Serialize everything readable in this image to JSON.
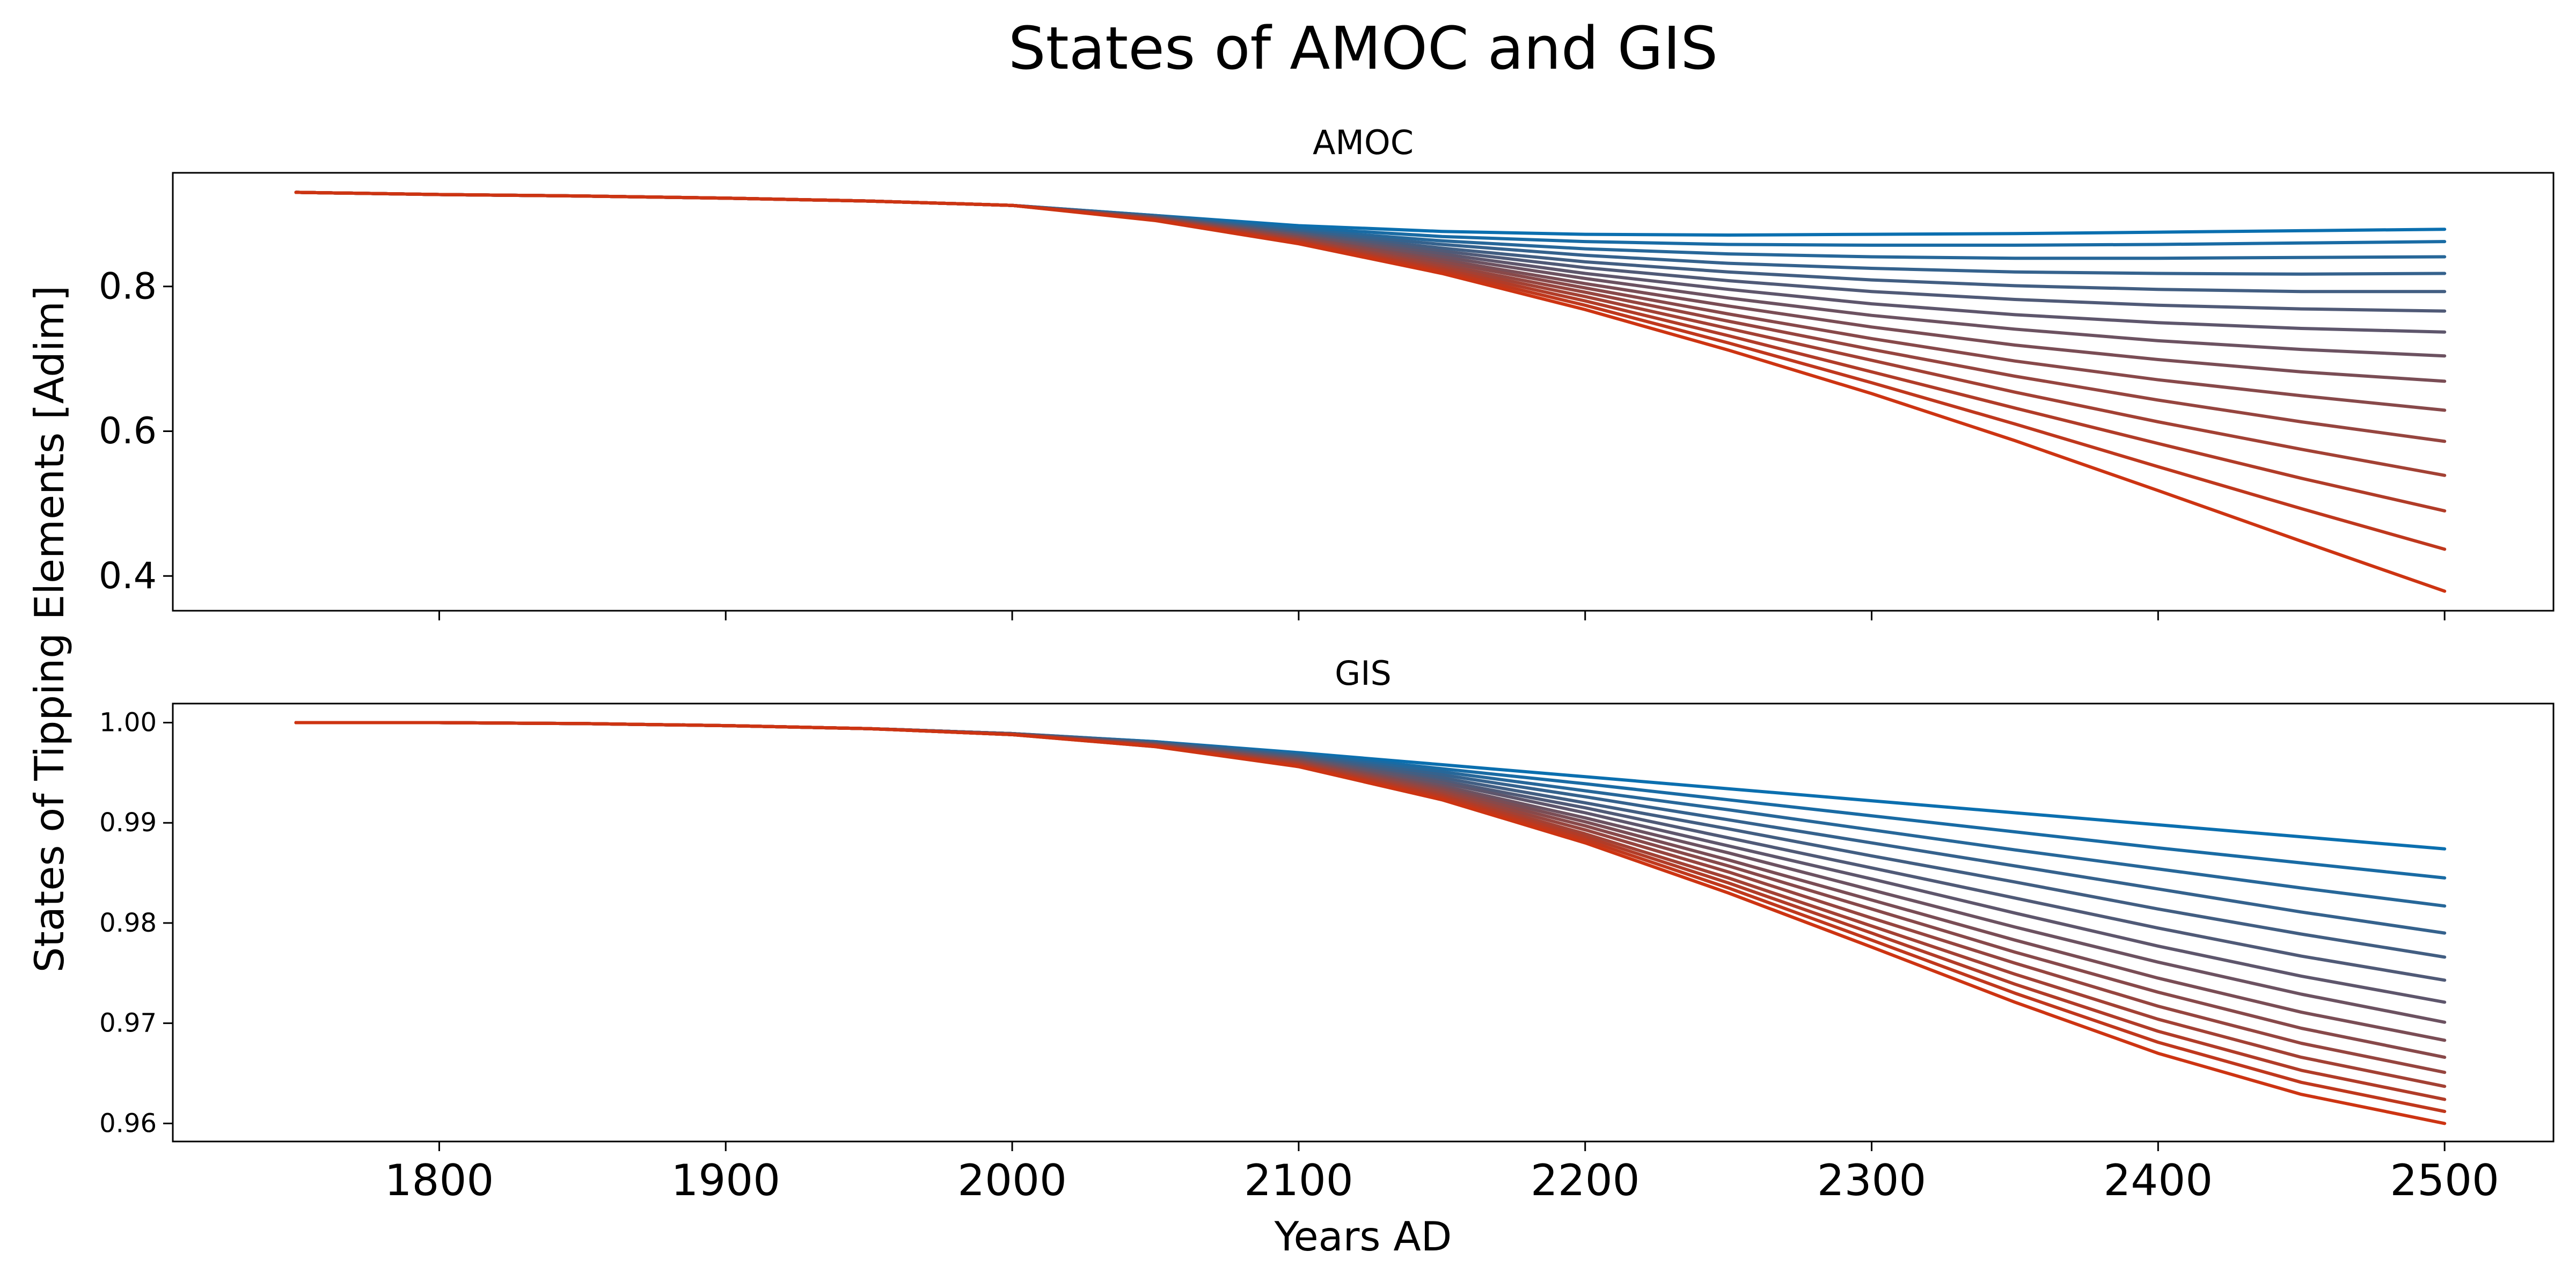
{
  "figure": {
    "title": "States of AMOC and GIS",
    "xlabel": "Years AD",
    "ylabel": "States of Tipping Elements [Adim]"
  },
  "colors": {
    "start": "#0b6faf",
    "end": "#cd3412"
  },
  "chart_data": [
    {
      "type": "line",
      "title": "AMOC",
      "xlabel": "",
      "ylabel": "",
      "xlim": [
        1707,
        2538
      ],
      "ylim": [
        0.352,
        0.957
      ],
      "xticks": [
        1800,
        1900,
        2000,
        2100,
        2200,
        2300,
        2400,
        2500
      ],
      "show_xticklabels": false,
      "yticks": [
        0.4,
        0.6,
        0.8
      ],
      "ytick_labels": [
        "0.4",
        "0.6",
        "0.8"
      ],
      "grid": false,
      "legend": "none",
      "x": [
        1750,
        1800,
        1850,
        1900,
        1950,
        2000,
        2050,
        2100,
        2150,
        2200,
        2250,
        2300,
        2350,
        2400,
        2450,
        2500
      ],
      "series": [
        {
          "values": [
            0.93,
            0.927,
            0.925,
            0.922,
            0.918,
            0.912,
            0.898,
            0.884,
            0.876,
            0.872,
            0.871,
            0.872,
            0.873,
            0.875,
            0.877,
            0.879
          ]
        },
        {
          "values": [
            0.93,
            0.927,
            0.925,
            0.922,
            0.918,
            0.912,
            0.898,
            0.881,
            0.869,
            0.862,
            0.858,
            0.857,
            0.857,
            0.858,
            0.86,
            0.862
          ]
        },
        {
          "values": [
            0.93,
            0.927,
            0.925,
            0.922,
            0.918,
            0.912,
            0.897,
            0.878,
            0.863,
            0.852,
            0.845,
            0.841,
            0.839,
            0.839,
            0.84,
            0.841
          ]
        },
        {
          "values": [
            0.93,
            0.927,
            0.925,
            0.922,
            0.918,
            0.912,
            0.897,
            0.876,
            0.858,
            0.843,
            0.832,
            0.825,
            0.82,
            0.818,
            0.817,
            0.818
          ]
        },
        {
          "values": [
            0.93,
            0.927,
            0.925,
            0.922,
            0.918,
            0.912,
            0.896,
            0.874,
            0.853,
            0.834,
            0.82,
            0.809,
            0.801,
            0.796,
            0.793,
            0.793
          ]
        },
        {
          "values": [
            0.93,
            0.927,
            0.925,
            0.922,
            0.918,
            0.912,
            0.896,
            0.873,
            0.849,
            0.826,
            0.808,
            0.793,
            0.782,
            0.774,
            0.769,
            0.766
          ]
        },
        {
          "values": [
            0.93,
            0.927,
            0.925,
            0.922,
            0.918,
            0.912,
            0.895,
            0.871,
            0.845,
            0.818,
            0.796,
            0.776,
            0.761,
            0.75,
            0.742,
            0.737
          ]
        },
        {
          "values": [
            0.93,
            0.927,
            0.925,
            0.922,
            0.918,
            0.912,
            0.895,
            0.87,
            0.841,
            0.811,
            0.784,
            0.76,
            0.741,
            0.725,
            0.713,
            0.704
          ]
        },
        {
          "values": [
            0.93,
            0.927,
            0.925,
            0.922,
            0.918,
            0.912,
            0.894,
            0.868,
            0.837,
            0.804,
            0.773,
            0.744,
            0.719,
            0.699,
            0.682,
            0.669
          ]
        },
        {
          "values": [
            0.93,
            0.927,
            0.925,
            0.922,
            0.918,
            0.912,
            0.894,
            0.867,
            0.834,
            0.798,
            0.762,
            0.728,
            0.697,
            0.671,
            0.649,
            0.629
          ]
        },
        {
          "values": [
            0.93,
            0.927,
            0.925,
            0.922,
            0.918,
            0.912,
            0.893,
            0.865,
            0.83,
            0.792,
            0.752,
            0.713,
            0.676,
            0.643,
            0.613,
            0.586
          ]
        },
        {
          "values": [
            0.93,
            0.927,
            0.925,
            0.922,
            0.918,
            0.912,
            0.893,
            0.864,
            0.827,
            0.786,
            0.742,
            0.698,
            0.654,
            0.613,
            0.575,
            0.539
          ]
        },
        {
          "values": [
            0.93,
            0.927,
            0.925,
            0.922,
            0.918,
            0.912,
            0.892,
            0.862,
            0.824,
            0.78,
            0.732,
            0.682,
            0.632,
            0.583,
            0.535,
            0.49
          ]
        },
        {
          "values": [
            0.93,
            0.927,
            0.925,
            0.922,
            0.918,
            0.912,
            0.892,
            0.861,
            0.821,
            0.774,
            0.722,
            0.667,
            0.61,
            0.551,
            0.493,
            0.437
          ]
        },
        {
          "values": [
            0.93,
            0.927,
            0.925,
            0.922,
            0.918,
            0.912,
            0.891,
            0.859,
            0.818,
            0.768,
            0.712,
            0.652,
            0.587,
            0.518,
            0.448,
            0.379
          ]
        }
      ]
    },
    {
      "type": "line",
      "title": "GIS",
      "xlabel": "",
      "ylabel": "",
      "xlim": [
        1707,
        2538
      ],
      "ylim": [
        0.9582,
        1.0019
      ],
      "xticks": [
        1800,
        1900,
        2000,
        2100,
        2200,
        2300,
        2400,
        2500
      ],
      "xtick_labels": [
        "1800",
        "1900",
        "2000",
        "2100",
        "2200",
        "2300",
        "2400",
        "2500"
      ],
      "show_xticklabels": true,
      "yticks": [
        0.96,
        0.97,
        0.98,
        0.99,
        1.0
      ],
      "ytick_labels": [
        "0.96",
        "0.97",
        "0.98",
        "0.99",
        "1.00"
      ],
      "grid": false,
      "legend": "none",
      "x": [
        1750,
        1800,
        1850,
        1900,
        1950,
        2000,
        2050,
        2100,
        2150,
        2200,
        2250,
        2300,
        2350,
        2400,
        2450,
        2500
      ],
      "series": [
        {
          "values": [
            1.0,
            1.0,
            0.9999,
            0.9997,
            0.9994,
            0.9989,
            0.9981,
            0.997,
            0.9958,
            0.9946,
            0.9934,
            0.9922,
            0.991,
            0.9898,
            0.9886,
            0.9874
          ]
        },
        {
          "values": [
            1.0,
            1.0,
            0.9999,
            0.9997,
            0.9994,
            0.9989,
            0.9981,
            0.9969,
            0.9954,
            0.9939,
            0.9923,
            0.9907,
            0.9891,
            0.9875,
            0.986,
            0.9845
          ]
        },
        {
          "values": [
            1.0,
            1.0,
            0.9999,
            0.9997,
            0.9994,
            0.9989,
            0.998,
            0.9968,
            0.9951,
            0.9932,
            0.9913,
            0.9893,
            0.9873,
            0.9854,
            0.9835,
            0.9817
          ]
        },
        {
          "values": [
            1.0,
            1.0,
            0.9999,
            0.9997,
            0.9994,
            0.9989,
            0.998,
            0.9967,
            0.9948,
            0.9926,
            0.9903,
            0.988,
            0.9857,
            0.9834,
            0.9811,
            0.979
          ]
        },
        {
          "values": [
            1.0,
            1.0,
            0.9999,
            0.9997,
            0.9994,
            0.9989,
            0.998,
            0.9966,
            0.9945,
            0.992,
            0.9894,
            0.9867,
            0.9841,
            0.9814,
            0.9789,
            0.9766
          ]
        },
        {
          "values": [
            1.0,
            1.0,
            0.9999,
            0.9997,
            0.9994,
            0.9989,
            0.9979,
            0.9965,
            0.9942,
            0.9915,
            0.9885,
            0.9855,
            0.9825,
            0.9795,
            0.9767,
            0.9743
          ]
        },
        {
          "values": [
            1.0,
            1.0,
            0.9999,
            0.9997,
            0.9994,
            0.9989,
            0.9979,
            0.9964,
            0.994,
            0.991,
            0.9877,
            0.9844,
            0.981,
            0.9777,
            0.9747,
            0.9721
          ]
        },
        {
          "values": [
            1.0,
            1.0,
            0.9999,
            0.9997,
            0.9994,
            0.9989,
            0.9978,
            0.9963,
            0.9937,
            0.9905,
            0.987,
            0.9833,
            0.9796,
            0.9761,
            0.9729,
            0.9701
          ]
        },
        {
          "values": [
            1.0,
            1.0,
            0.9999,
            0.9997,
            0.9994,
            0.9988,
            0.9978,
            0.9962,
            0.9935,
            0.9901,
            0.9863,
            0.9823,
            0.9783,
            0.9745,
            0.9711,
            0.9683
          ]
        },
        {
          "values": [
            1.0,
            1.0,
            0.9999,
            0.9997,
            0.9994,
            0.9988,
            0.9978,
            0.9961,
            0.9933,
            0.9897,
            0.9857,
            0.9814,
            0.9771,
            0.9731,
            0.9695,
            0.9666
          ]
        },
        {
          "values": [
            1.0,
            1.0,
            0.9999,
            0.9997,
            0.9994,
            0.9988,
            0.9977,
            0.996,
            0.9931,
            0.9893,
            0.9851,
            0.9805,
            0.976,
            0.9717,
            0.968,
            0.9651
          ]
        },
        {
          "values": [
            1.0,
            1.0,
            0.9999,
            0.9997,
            0.9994,
            0.9988,
            0.9977,
            0.9959,
            0.9929,
            0.9889,
            0.9845,
            0.9797,
            0.9749,
            0.9704,
            0.9666,
            0.9637
          ]
        },
        {
          "values": [
            1.0,
            1.0,
            0.9999,
            0.9997,
            0.9994,
            0.9988,
            0.9977,
            0.9958,
            0.9927,
            0.9886,
            0.984,
            0.979,
            0.9739,
            0.9692,
            0.9653,
            0.9624
          ]
        },
        {
          "values": [
            1.0,
            1.0,
            0.9999,
            0.9997,
            0.9994,
            0.9988,
            0.9976,
            0.9957,
            0.9925,
            0.9883,
            0.9835,
            0.9783,
            0.973,
            0.9681,
            0.9641,
            0.9612
          ]
        },
        {
          "values": [
            1.0,
            1.0,
            0.9999,
            0.9997,
            0.9994,
            0.9988,
            0.9976,
            0.9956,
            0.9923,
            0.988,
            0.983,
            0.9776,
            0.9721,
            0.967,
            0.9629,
            0.96
          ]
        }
      ]
    }
  ]
}
